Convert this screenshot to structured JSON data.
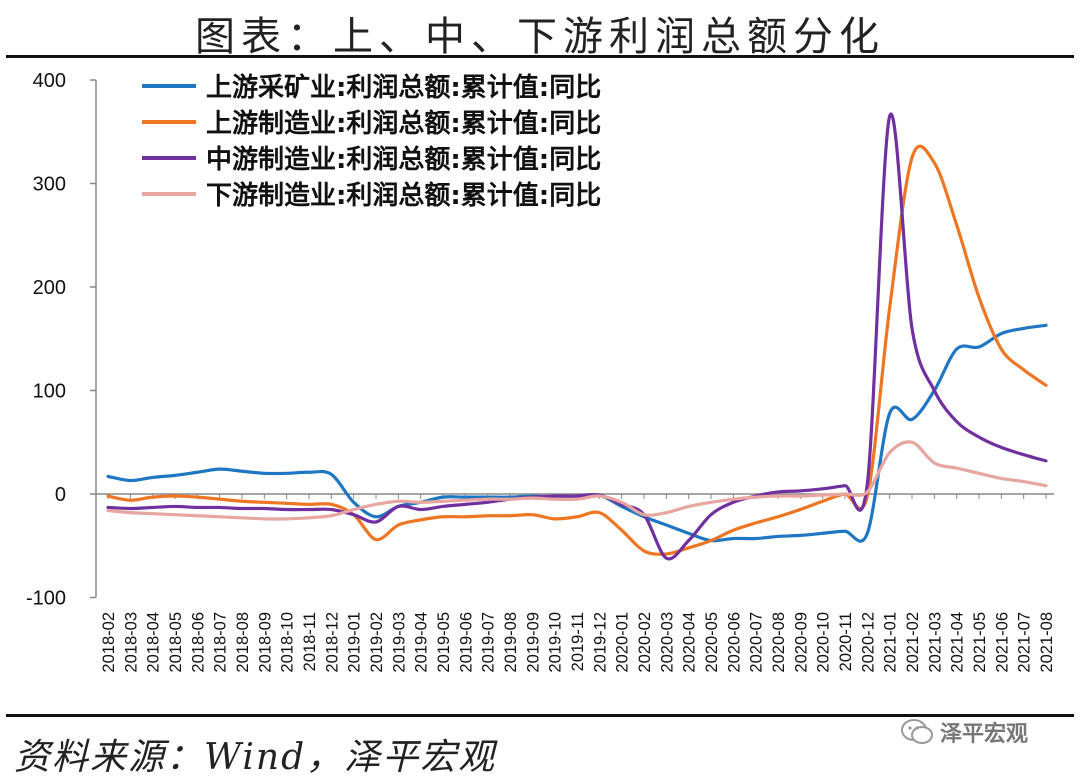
{
  "title": "图表：上、中、下游利润总额分化",
  "source": "资料来源：Wind，泽平宏观",
  "watermark": "泽平宏观",
  "chart_data": {
    "type": "line",
    "ylim": [
      -100,
      400
    ],
    "yticks": [
      -100,
      0,
      100,
      200,
      300,
      400
    ],
    "legend_position": "top-left",
    "categories": [
      "2018-02",
      "2018-03",
      "2018-04",
      "2018-05",
      "2018-06",
      "2018-07",
      "2018-08",
      "2018-09",
      "2018-10",
      "2018-11",
      "2018-12",
      "2019-01",
      "2019-02",
      "2019-03",
      "2019-04",
      "2019-05",
      "2019-06",
      "2019-07",
      "2019-08",
      "2019-09",
      "2019-10",
      "2019-11",
      "2019-12",
      "2020-01",
      "2020-02",
      "2020-03",
      "2020-04",
      "2020-05",
      "2020-06",
      "2020-07",
      "2020-08",
      "2020-09",
      "2020-10",
      "2020-11",
      "2020-12",
      "2021-01",
      "2021-02",
      "2021-03",
      "2021-04",
      "2021-05",
      "2021-06",
      "2021-07",
      "2021-08"
    ],
    "series": [
      {
        "name": "上游采矿业:利润总额:累计值:同比",
        "color": "#1f77c4",
        "values": [
          17,
          13,
          16,
          18,
          21,
          24,
          22,
          20,
          20,
          21,
          19,
          -8,
          -22,
          -12,
          -8,
          -3,
          -3,
          -3,
          -3,
          -2,
          -3,
          -2,
          -1,
          -12,
          -22,
          -30,
          -38,
          -45,
          -43,
          -43,
          -41,
          -40,
          -38,
          -36,
          -38,
          78,
          72,
          100,
          140,
          142,
          155,
          160,
          163
        ]
      },
      {
        "name": "上游制造业:利润总额:累计值:同比",
        "color": "#ee7622",
        "values": [
          -2,
          -6,
          -3,
          -2,
          -3,
          -5,
          -7,
          -8,
          -9,
          -10,
          -10,
          -20,
          -44,
          -30,
          -25,
          -22,
          -22,
          -21,
          -21,
          -20,
          -24,
          -22,
          -18,
          -35,
          -55,
          -58,
          -52,
          -45,
          -35,
          -28,
          -22,
          -15,
          -7,
          0,
          -2,
          180,
          325,
          320,
          260,
          190,
          140,
          120,
          105
        ]
      },
      {
        "name": "中游制造业:利润总额:累计值:同比",
        "color": "#7030a0",
        "values": [
          -13,
          -14,
          -13,
          -12,
          -13,
          -13,
          -14,
          -14,
          -15,
          -15,
          -15,
          -20,
          -27,
          -12,
          -15,
          -12,
          -10,
          -8,
          -5,
          -3,
          -2,
          -2,
          -1,
          -10,
          -20,
          -62,
          -45,
          -20,
          -8,
          -2,
          2,
          3,
          5,
          8,
          10,
          365,
          160,
          100,
          70,
          55,
          45,
          38,
          32
        ]
      },
      {
        "name": "下游制造业:利润总额:累计值:同比",
        "color": "#e8a6a0",
        "values": [
          -16,
          -18,
          -19,
          -20,
          -21,
          -22,
          -23,
          -24,
          -24,
          -23,
          -21,
          -15,
          -10,
          -7,
          -8,
          -7,
          -6,
          -5,
          -5,
          -4,
          -5,
          -5,
          -2,
          -8,
          -20,
          -18,
          -12,
          -8,
          -5,
          -3,
          -2,
          -2,
          -1,
          0,
          2,
          40,
          50,
          30,
          25,
          20,
          15,
          12,
          8
        ]
      }
    ]
  }
}
